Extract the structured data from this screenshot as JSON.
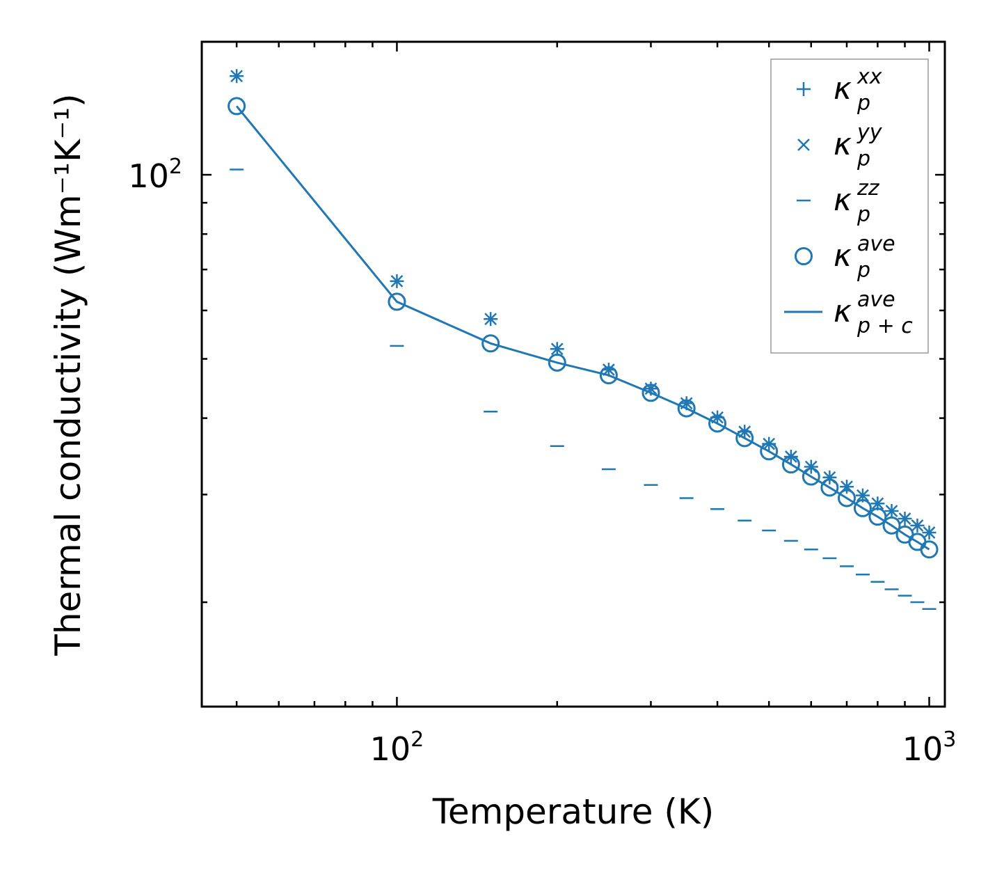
{
  "chart_data": {
    "type": "scatter",
    "xscale": "log",
    "yscale": "log",
    "xlabel": "Temperature (K)",
    "ylabel": "Thermal conductivity (Wm⁻¹K⁻¹)",
    "xlim": [
      43,
      1070
    ],
    "ylim": [
      13.5,
      165
    ],
    "x_major_ticks": [
      {
        "value": 100,
        "base": "10",
        "exp": "2"
      },
      {
        "value": 1000,
        "base": "10",
        "exp": "3"
      }
    ],
    "y_major_ticks": [
      {
        "value": 100,
        "base": "10",
        "exp": "2"
      }
    ],
    "color": "#1f77b4",
    "x": [
      50,
      100,
      150,
      200,
      250,
      300,
      350,
      400,
      450,
      500,
      550,
      600,
      650,
      700,
      750,
      800,
      850,
      900,
      950,
      1000
    ],
    "series": [
      {
        "name": "kappa_p^xx",
        "marker": "plus",
        "values": [
          145.0,
          67.0,
          58.1,
          51.9,
          48.0,
          44.7,
          42.3,
          40.1,
          38.0,
          36.3,
          34.6,
          33.3,
          32.0,
          30.9,
          29.9,
          29.0,
          28.2,
          27.4,
          26.7,
          26.0
        ]
      },
      {
        "name": "kappa_p^yy",
        "marker": "x",
        "values": [
          145.0,
          67.0,
          58.1,
          51.9,
          48.0,
          44.7,
          42.3,
          40.1,
          38.0,
          36.3,
          34.6,
          33.3,
          32.0,
          30.9,
          29.9,
          29.0,
          28.2,
          27.4,
          26.7,
          26.0
        ]
      },
      {
        "name": "kappa_p^zz",
        "marker": "hline",
        "values": [
          102.0,
          52.5,
          41.0,
          36.0,
          33.0,
          31.1,
          29.6,
          28.4,
          27.2,
          26.2,
          25.2,
          24.4,
          23.6,
          22.9,
          22.2,
          21.6,
          21.0,
          20.5,
          20.0,
          19.5
        ]
      },
      {
        "name": "kappa_p^ave",
        "marker": "circle",
        "values": [
          129.5,
          62.0,
          53.0,
          49.3,
          47.0,
          44.0,
          41.5,
          39.2,
          37.1,
          35.3,
          33.6,
          32.1,
          30.8,
          29.6,
          28.5,
          27.6,
          26.7,
          25.8,
          25.1,
          24.4
        ]
      },
      {
        "name": "kappa_p+c^ave",
        "marker": "line",
        "values": [
          129.5,
          62.0,
          53.0,
          49.3,
          47.0,
          44.0,
          41.5,
          39.2,
          37.1,
          35.3,
          33.6,
          32.1,
          30.8,
          29.6,
          28.5,
          27.6,
          26.7,
          25.8,
          25.1,
          24.4
        ]
      }
    ],
    "legend": {
      "placement": "top-right",
      "entries": [
        {
          "symbol": "κ",
          "sub": "p",
          "sup": "xx"
        },
        {
          "symbol": "κ",
          "sub": "p",
          "sup": "yy"
        },
        {
          "symbol": "κ",
          "sub": "p",
          "sup": "zz"
        },
        {
          "symbol": "κ",
          "sub": "p",
          "sup": "ave"
        },
        {
          "symbol": "κ",
          "sub": "p + c",
          "sup": "ave"
        }
      ]
    }
  }
}
